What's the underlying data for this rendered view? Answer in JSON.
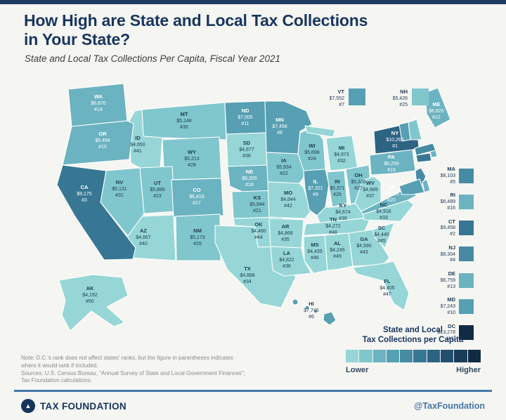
{
  "header": {
    "title_line1": "How High are State and Local Tax Collections",
    "title_line2": "in Your State?",
    "subtitle": "State and Local Tax Collections Per Capita, Fiscal Year 2021"
  },
  "chart_data": {
    "type": "choropleth",
    "title": "How High are State and Local Tax Collections in Your State?",
    "subtitle": "State and Local Tax Collections Per Capita, Fiscal Year 2021",
    "unit": "USD per capita",
    "value_range": [
      4192,
      13278
    ],
    "states": [
      {
        "abbr": "WA",
        "value": "$6,670",
        "value_num": 6670,
        "rank": "#14",
        "display": "map"
      },
      {
        "abbr": "OR",
        "value": "$6,494",
        "value_num": 6494,
        "rank": "#15",
        "display": "map"
      },
      {
        "abbr": "CA",
        "value": "$9,175",
        "value_num": 9175,
        "rank": "#3",
        "display": "map"
      },
      {
        "abbr": "NV",
        "value": "$5,131",
        "value_num": 5131,
        "rank": "#31",
        "display": "map"
      },
      {
        "abbr": "ID",
        "value": "$4,650",
        "value_num": 4650,
        "rank": "#41",
        "display": "map"
      },
      {
        "abbr": "MT",
        "value": "$5,148",
        "value_num": 5148,
        "rank": "#30",
        "display": "map"
      },
      {
        "abbr": "WY",
        "value": "$5,213",
        "value_num": 5213,
        "rank": "#28",
        "display": "map"
      },
      {
        "abbr": "UT",
        "value": "$5,899",
        "value_num": 5899,
        "rank": "#23",
        "display": "map"
      },
      {
        "abbr": "CO",
        "value": "$6,418",
        "value_num": 6418,
        "rank": "#17",
        "display": "map"
      },
      {
        "abbr": "AZ",
        "value": "$4,667",
        "value_num": 4667,
        "rank": "#40",
        "display": "map"
      },
      {
        "abbr": "NM",
        "value": "$5,173",
        "value_num": 5173,
        "rank": "#29",
        "display": "map"
      },
      {
        "abbr": "ND",
        "value": "$7,005",
        "value_num": 7005,
        "rank": "#11",
        "display": "map"
      },
      {
        "abbr": "SD",
        "value": "$4,677",
        "value_num": 4677,
        "rank": "#38",
        "display": "map"
      },
      {
        "abbr": "NE",
        "value": "$6,355",
        "value_num": 6355,
        "rank": "#18",
        "display": "map"
      },
      {
        "abbr": "KS",
        "value": "$5,944",
        "value_num": 5944,
        "rank": "#21",
        "display": "map"
      },
      {
        "abbr": "OK",
        "value": "$4,480",
        "value_num": 4480,
        "rank": "#44",
        "display": "map"
      },
      {
        "abbr": "TX",
        "value": "$4,888",
        "value_num": 4888,
        "rank": "#34",
        "display": "map"
      },
      {
        "abbr": "MN",
        "value": "$7,458",
        "value_num": 7458,
        "rank": "#8",
        "display": "map"
      },
      {
        "abbr": "IA",
        "value": "$5,934",
        "value_num": 5934,
        "rank": "#22",
        "display": "map"
      },
      {
        "abbr": "MO",
        "value": "$4,644",
        "value_num": 4644,
        "rank": "#42",
        "display": "map"
      },
      {
        "abbr": "AR",
        "value": "$4,868",
        "value_num": 4868,
        "rank": "#35",
        "display": "map"
      },
      {
        "abbr": "LA",
        "value": "$4,822",
        "value_num": 4822,
        "rank": "#36",
        "display": "map"
      },
      {
        "abbr": "WI",
        "value": "$5,698",
        "value_num": 5698,
        "rank": "#24",
        "display": "map"
      },
      {
        "abbr": "IL",
        "value": "$7,321",
        "value_num": 7321,
        "rank": "#9",
        "display": "map"
      },
      {
        "abbr": "MI",
        "value": "$4,973",
        "value_num": 4973,
        "rank": "#32",
        "display": "map"
      },
      {
        "abbr": "IN",
        "value": "$5,371",
        "value_num": 5371,
        "rank": "#26",
        "display": "map"
      },
      {
        "abbr": "OH",
        "value": "$5,335",
        "value_num": 5335,
        "rank": "#27",
        "display": "map"
      },
      {
        "abbr": "KY",
        "value": "$4,674",
        "value_num": 4674,
        "rank": "#39",
        "display": "map"
      },
      {
        "abbr": "TN",
        "value": "$4,272",
        "value_num": 4272,
        "rank": "#48",
        "display": "map"
      },
      {
        "abbr": "MS",
        "value": "$4,435",
        "value_num": 4435,
        "rank": "#46",
        "display": "map"
      },
      {
        "abbr": "AL",
        "value": "$4,245",
        "value_num": 4245,
        "rank": "#49",
        "display": "map"
      },
      {
        "abbr": "GA",
        "value": "$4,590",
        "value_num": 4590,
        "rank": "#43",
        "display": "map"
      },
      {
        "abbr": "FL",
        "value": "$4,405",
        "value_num": 4405,
        "rank": "#47",
        "display": "map"
      },
      {
        "abbr": "SC",
        "value": "$4,440",
        "value_num": 4440,
        "rank": "#45",
        "display": "map"
      },
      {
        "abbr": "NC",
        "value": "$4,916",
        "value_num": 4916,
        "rank": "#33",
        "display": "map"
      },
      {
        "abbr": "VA",
        "value": "$6,195",
        "value_num": 6195,
        "rank": "#20",
        "display": "map"
      },
      {
        "abbr": "WV",
        "value": "$4,689",
        "value_num": 4689,
        "rank": "#37",
        "display": "map"
      },
      {
        "abbr": "PA",
        "value": "$6,259",
        "value_num": 6259,
        "rank": "#19",
        "display": "map"
      },
      {
        "abbr": "NY",
        "value": "$10,266",
        "value_num": 10266,
        "rank": "#1",
        "display": "map"
      },
      {
        "abbr": "ME",
        "value": "$6,825",
        "value_num": 6825,
        "rank": "#12",
        "display": "map"
      },
      {
        "abbr": "AK",
        "value": "$4,192",
        "value_num": 4192,
        "rank": "#50",
        "display": "map"
      },
      {
        "abbr": "HI",
        "value": "$7,746",
        "value_num": 7746,
        "rank": "#6",
        "display": "map"
      },
      {
        "abbr": "VT",
        "value": "$7,552",
        "value_num": 7552,
        "rank": "#7",
        "display": "callout"
      },
      {
        "abbr": "NH",
        "value": "$5,426",
        "value_num": 5426,
        "rank": "#25",
        "display": "callout"
      },
      {
        "abbr": "MA",
        "value": "$8,103",
        "value_num": 8103,
        "rank": "#5",
        "display": "list"
      },
      {
        "abbr": "RI",
        "value": "$6,489",
        "value_num": 6489,
        "rank": "#16",
        "display": "list"
      },
      {
        "abbr": "CT",
        "value": "$9,458",
        "value_num": 9458,
        "rank": "#2",
        "display": "list"
      },
      {
        "abbr": "NJ",
        "value": "$8,304",
        "value_num": 8304,
        "rank": "#4",
        "display": "list"
      },
      {
        "abbr": "DE",
        "value": "$6,759",
        "value_num": 6759,
        "rank": "#13",
        "display": "list"
      },
      {
        "abbr": "MD",
        "value": "$7,243",
        "value_num": 7243,
        "rank": "#10",
        "display": "list"
      },
      {
        "abbr": "DC",
        "value": "$13,278",
        "value_num": 13278,
        "rank": "(#1)",
        "display": "list"
      }
    ],
    "legend": {
      "title_line1": "State and Local",
      "title_line2": "Tax Collections per Capita",
      "lower": "Lower",
      "higher": "Higher",
      "palette": [
        "#96d6d6",
        "#80c6cd",
        "#6bb3c1",
        "#579fb2",
        "#468ba3",
        "#387794",
        "#2d6383",
        "#234f6f",
        "#1a3c59",
        "#122b44"
      ]
    }
  },
  "notes": {
    "line1": "Note: D.C.'s rank does not affect states' ranks, but the figure in parentheses indicates",
    "line2": "where it would rank if included.",
    "line3": "Sources: U.S. Census Bureau, \"Annual Survey of State and Local Government Finances\";",
    "line4": "Tax Foundation calculations."
  },
  "footer": {
    "brand": "TAX FOUNDATION",
    "handle": "@TaxFoundation"
  },
  "colors": {
    "accent_navy": "#17365f",
    "topbar_navy": "#1e3c64",
    "footer_blue": "#4577a8",
    "background": "#f5f5f2",
    "label_dark": "#1d3b54",
    "label_light": "#ffffff"
  }
}
